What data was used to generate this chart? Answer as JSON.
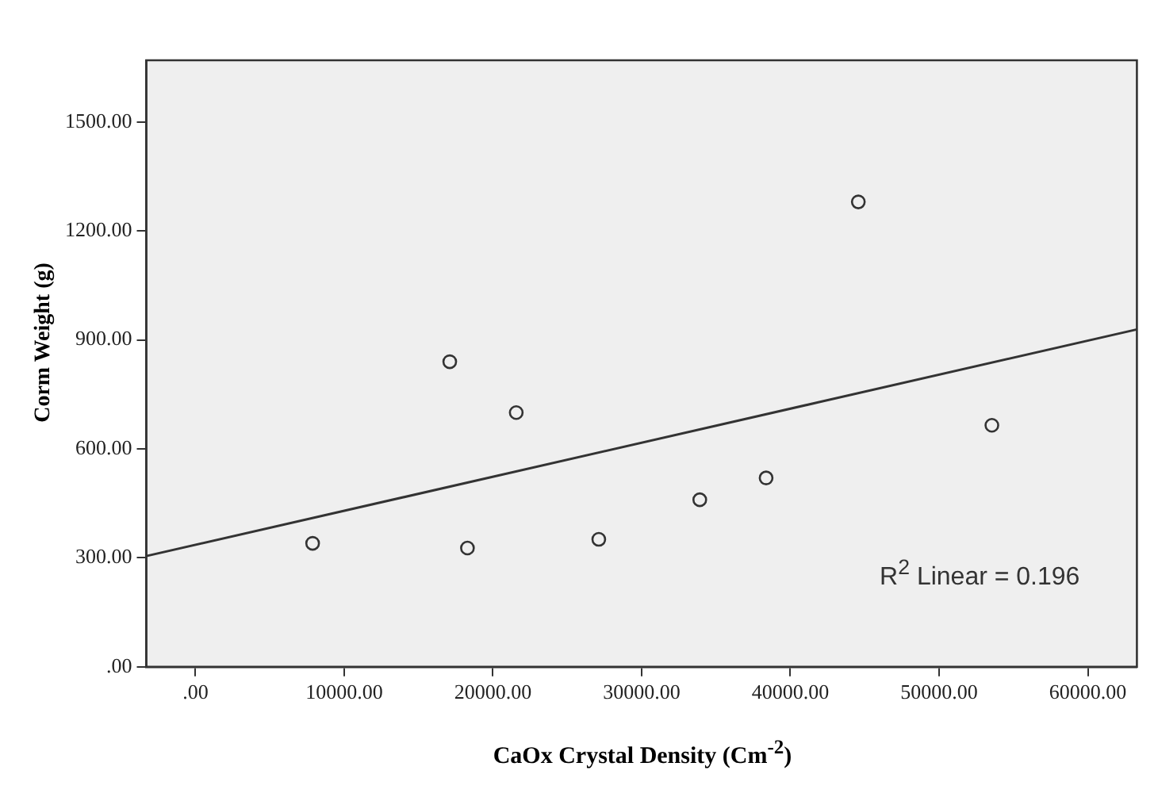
{
  "chart_data": {
    "type": "scatter",
    "xlabel": "CaOx Crystal Density (Cm$^{-2}$)",
    "ylabel": "Corm Weight (g)",
    "marker": "circle",
    "grid": false,
    "legend": false,
    "xlim": [
      -3300,
      63300
    ],
    "ylim": [
      0,
      1670
    ],
    "xticks": [
      {
        "value": 0,
        "label": ".00"
      },
      {
        "value": 10000,
        "label": "10000.00"
      },
      {
        "value": 20000,
        "label": "20000.00"
      },
      {
        "value": 30000,
        "label": "30000.00"
      },
      {
        "value": 40000,
        "label": "40000.00"
      },
      {
        "value": 50000,
        "label": "50000.00"
      },
      {
        "value": 60000,
        "label": "60000.00"
      }
    ],
    "yticks": [
      {
        "value": 0,
        "label": ".00"
      },
      {
        "value": 300,
        "label": "300.00"
      },
      {
        "value": 600,
        "label": "600.00"
      },
      {
        "value": 900,
        "label": "900.00"
      },
      {
        "value": 1200,
        "label": "1200.00"
      },
      {
        "value": 1500,
        "label": "1500.00"
      }
    ],
    "series": [
      {
        "type": "scatter",
        "color": "#333333",
        "x": [
          7880,
          17100,
          18290,
          21570,
          27120,
          33910,
          38370,
          44570,
          53550
        ],
        "values": [
          340,
          840,
          327,
          700,
          351,
          460,
          520,
          1280,
          665
        ]
      },
      {
        "type": "line",
        "color": "#333333",
        "x": [
          -3300,
          63300
        ],
        "values": [
          305,
          929
        ],
        "marker": "none"
      }
    ],
    "annotations": [
      "R$^{2}$ Linear = 0.196"
    ]
  }
}
